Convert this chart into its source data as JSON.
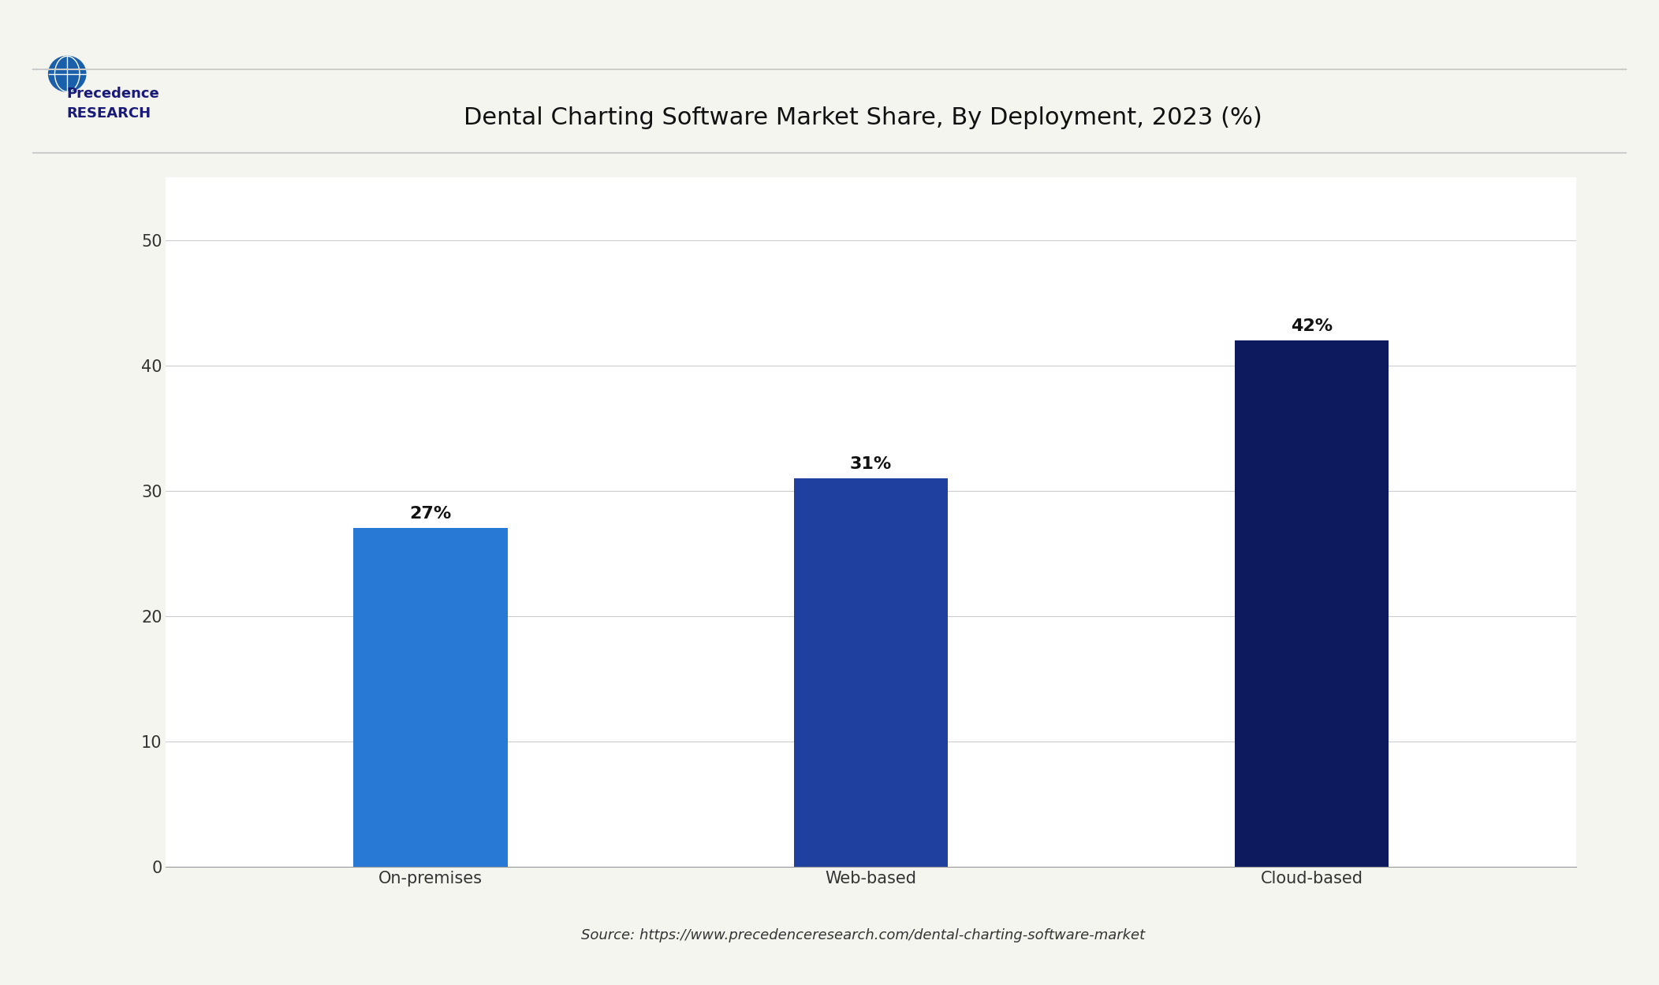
{
  "title": "Dental Charting Software Market Share, By Deployment, 2023 (%)",
  "categories": [
    "On-premises",
    "Web-based",
    "Cloud-based"
  ],
  "values": [
    27,
    31,
    42
  ],
  "labels": [
    "27%",
    "31%",
    "42%"
  ],
  "bar_colors": [
    "#2878d6",
    "#2040a0",
    "#0d1a5e"
  ],
  "ylim": [
    0,
    55
  ],
  "yticks": [
    0,
    10,
    20,
    30,
    40,
    50
  ],
  "background_color": "#f5f5f0",
  "plot_bg_color": "#ffffff",
  "title_fontsize": 22,
  "tick_fontsize": 15,
  "label_fontsize": 16,
  "source_text": "Source: https://www.precedenceresearch.com/dental-charting-software-market",
  "bar_width": 0.35
}
